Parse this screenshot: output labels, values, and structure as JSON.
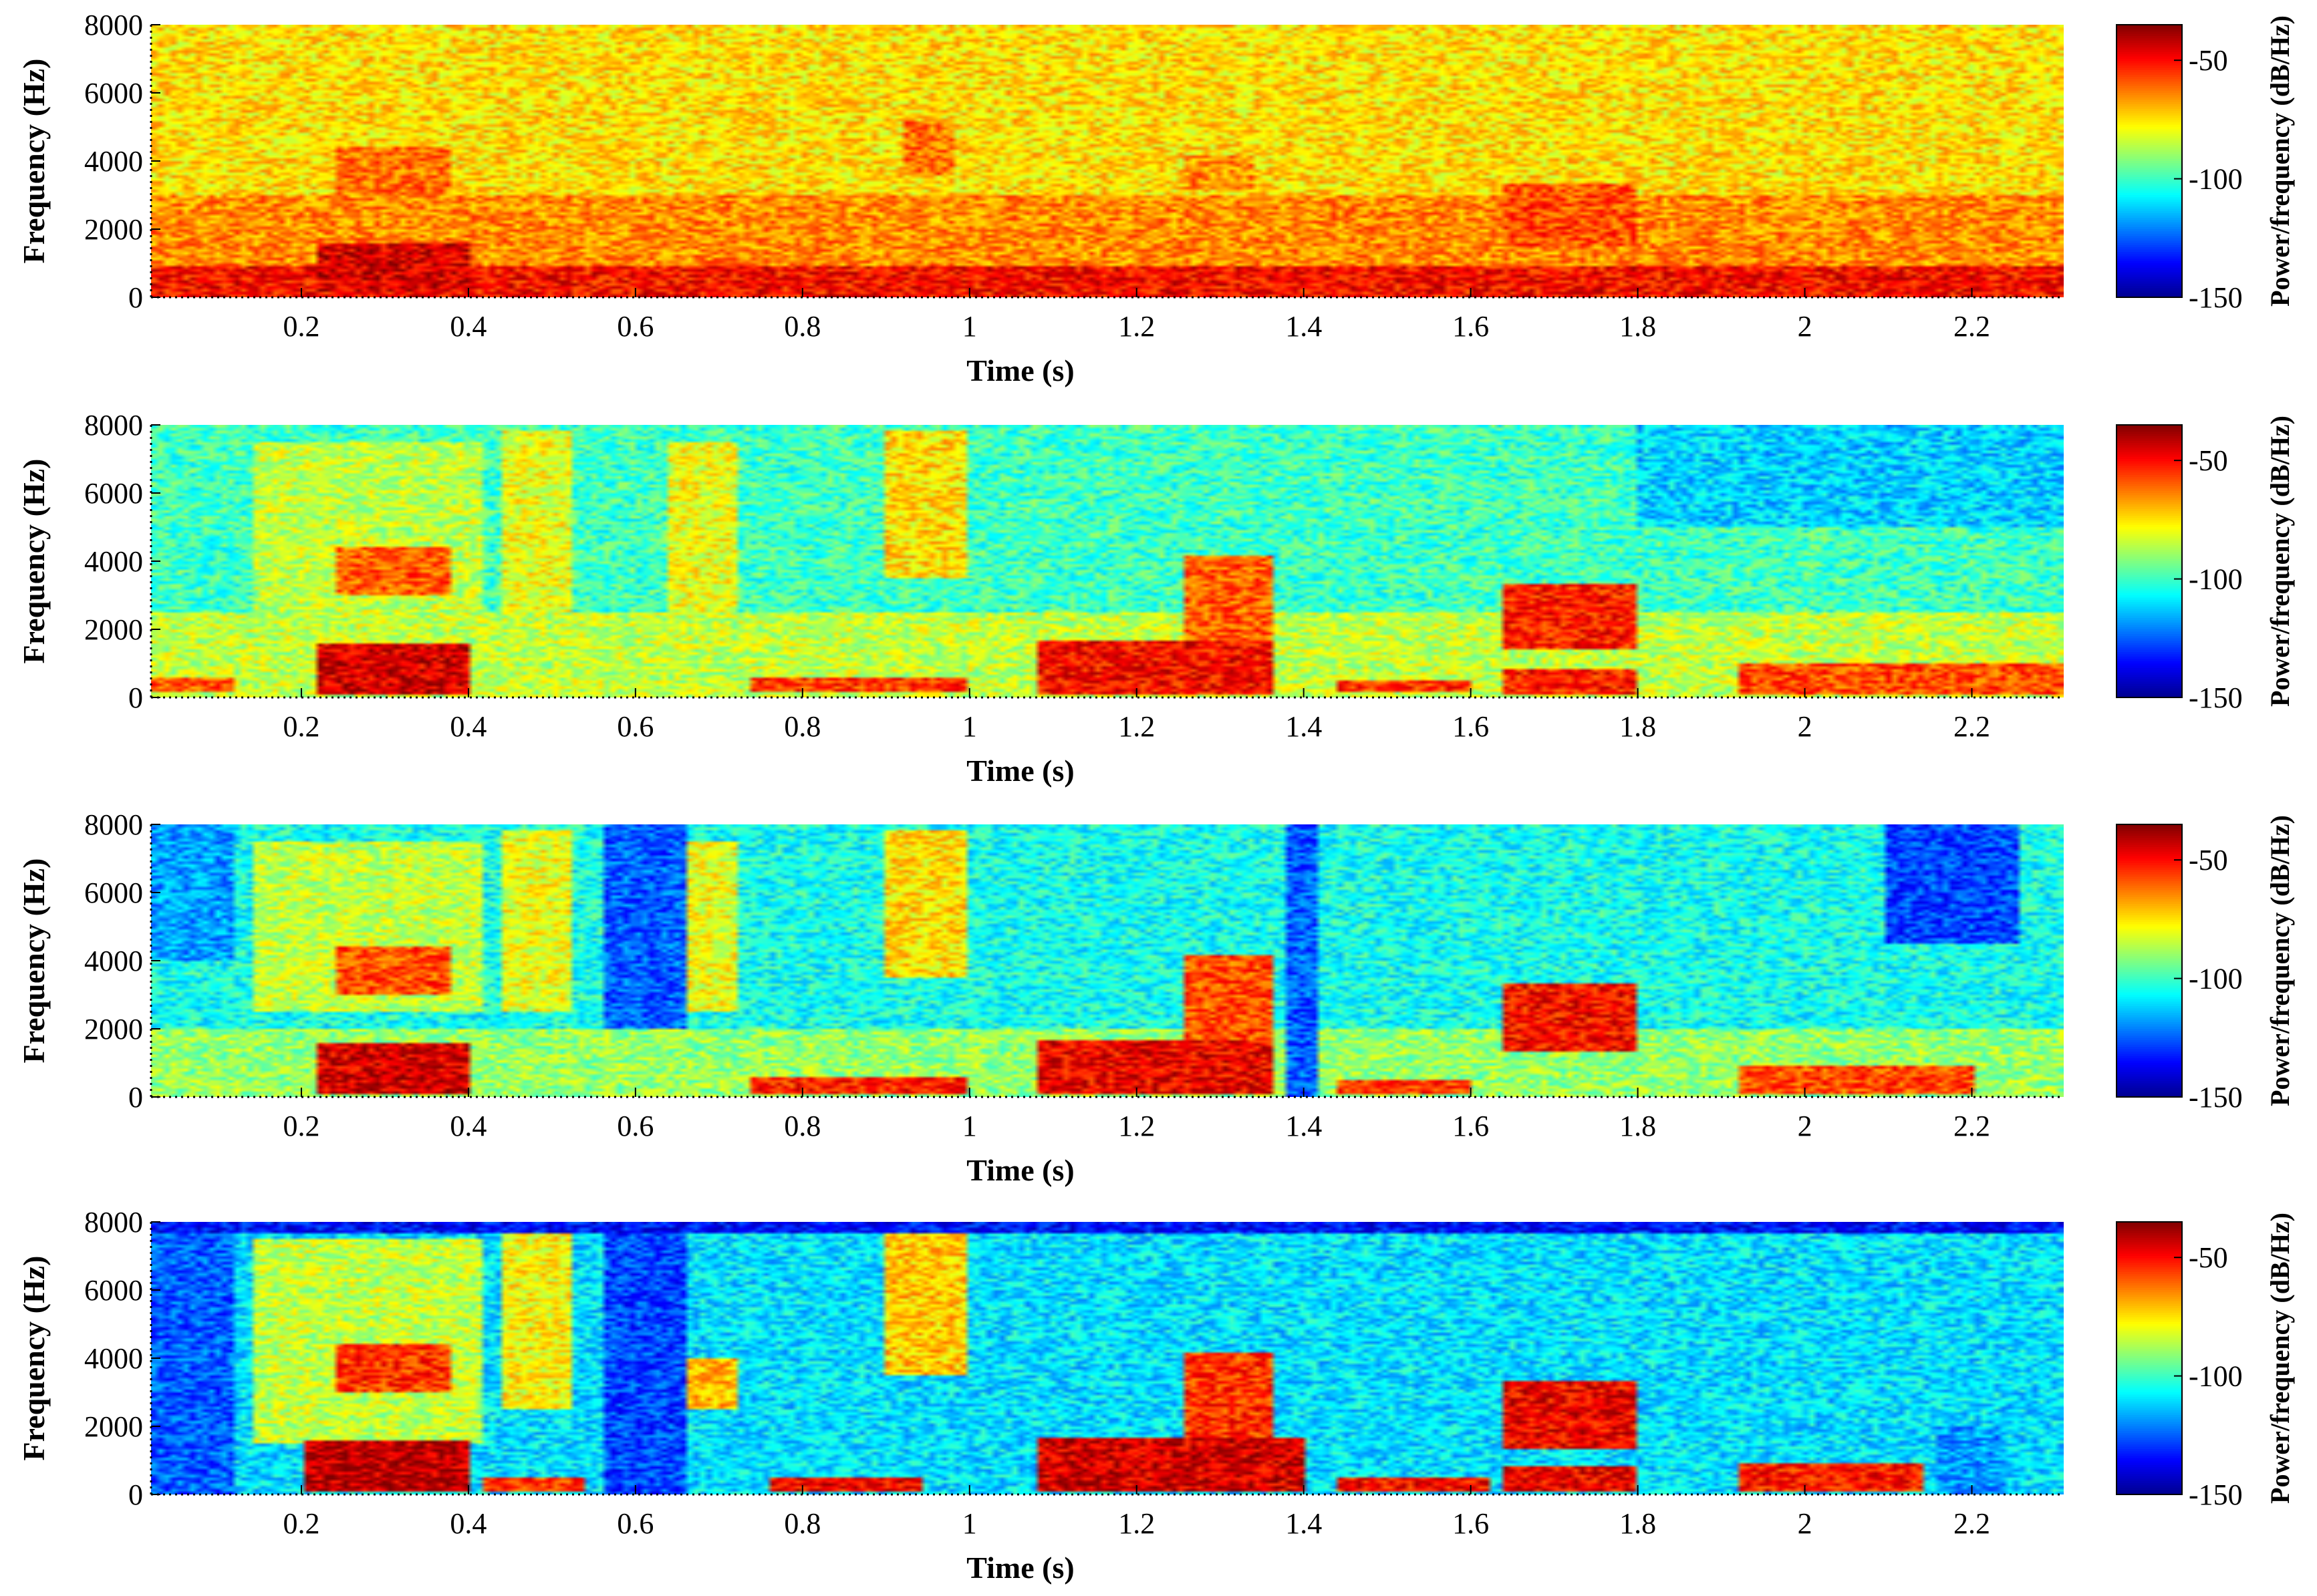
{
  "colormap": [
    "#00008f",
    "#0000ff",
    "#0080ff",
    "#00ffff",
    "#80ff80",
    "#ffff00",
    "#ff8000",
    "#ff0000",
    "#800000"
  ],
  "chart_data": [
    {
      "type": "heatmap",
      "title": "",
      "xlabel": "Time (s)",
      "ylabel": "Frequency (Hz)",
      "xlim": [
        0.02,
        2.31
      ],
      "ylim": [
        0,
        8000
      ],
      "xticks": [
        0.2,
        0.4,
        0.6,
        0.8,
        1,
        1.2,
        1.4,
        1.6,
        1.8,
        2,
        2.2
      ],
      "yticks": [
        0,
        2000,
        4000,
        6000,
        8000
      ],
      "colorbar": {
        "label": "Power/frequency (dB/Hz)",
        "range": [
          -150,
          -35
        ],
        "ticks": [
          -50,
          -100,
          -150
        ]
      },
      "background_db": -75,
      "features": [
        {
          "t": [
            0.02,
            2.31
          ],
          "f": [
            0,
            900
          ],
          "db": -50
        },
        {
          "t": [
            0.02,
            2.31
          ],
          "f": [
            900,
            3000
          ],
          "db": -65
        },
        {
          "t": [
            0.22,
            0.4
          ],
          "f": [
            200,
            1600
          ],
          "db": -45
        },
        {
          "t": [
            0.24,
            0.38
          ],
          "f": [
            3000,
            4400
          ],
          "db": -62
        },
        {
          "t": [
            1.64,
            1.8
          ],
          "f": [
            1500,
            3300
          ],
          "db": -58
        },
        {
          "t": [
            0.92,
            0.98
          ],
          "f": [
            3600,
            5200
          ],
          "db": -62
        },
        {
          "t": [
            1.26,
            1.34
          ],
          "f": [
            3200,
            4200
          ],
          "db": -65
        }
      ]
    },
    {
      "type": "heatmap",
      "title": "",
      "xlabel": "Time (s)",
      "ylabel": "Frequency (Hz)",
      "xlim": [
        0.02,
        2.31
      ],
      "ylim": [
        0,
        8000
      ],
      "xticks": [
        0.2,
        0.4,
        0.6,
        0.8,
        1,
        1.2,
        1.4,
        1.6,
        1.8,
        2,
        2.2
      ],
      "yticks": [
        0,
        2000,
        4000,
        6000,
        8000
      ],
      "colorbar": {
        "label": "Power/frequency (dB/Hz)",
        "range": [
          -150,
          -35
        ],
        "ticks": [
          -50,
          -100,
          -150
        ]
      },
      "background_db": -100,
      "features": [
        {
          "t": [
            0.02,
            2.31
          ],
          "f": [
            0,
            2500
          ],
          "db": -85
        },
        {
          "t": [
            0.02,
            0.12
          ],
          "f": [
            200,
            600
          ],
          "db": -60
        },
        {
          "t": [
            0.14,
            0.42
          ],
          "f": [
            2500,
            7500
          ],
          "db": -85
        },
        {
          "t": [
            0.22,
            0.4
          ],
          "f": [
            100,
            1600
          ],
          "db": -45
        },
        {
          "t": [
            0.24,
            0.38
          ],
          "f": [
            3000,
            4400
          ],
          "db": -60
        },
        {
          "t": [
            0.44,
            0.52
          ],
          "f": [
            2500,
            7800
          ],
          "db": -80
        },
        {
          "t": [
            0.64,
            0.72
          ],
          "f": [
            2500,
            7500
          ],
          "db": -80
        },
        {
          "t": [
            0.9,
            1.0
          ],
          "f": [
            3500,
            7800
          ],
          "db": -75
        },
        {
          "t": [
            0.74,
            1.0
          ],
          "f": [
            200,
            600
          ],
          "db": -55
        },
        {
          "t": [
            1.08,
            1.36
          ],
          "f": [
            100,
            1700
          ],
          "db": -50
        },
        {
          "t": [
            1.26,
            1.36
          ],
          "f": [
            1700,
            4200
          ],
          "db": -60
        },
        {
          "t": [
            1.44,
            1.6
          ],
          "f": [
            200,
            500
          ],
          "db": -55
        },
        {
          "t": [
            1.64,
            1.8
          ],
          "f": [
            1400,
            3300
          ],
          "db": -52
        },
        {
          "t": [
            1.64,
            1.8
          ],
          "f": [
            100,
            800
          ],
          "db": -52
        },
        {
          "t": [
            1.92,
            2.31
          ],
          "f": [
            100,
            1000
          ],
          "db": -58
        },
        {
          "t": [
            1.8,
            2.31
          ],
          "f": [
            5000,
            8000
          ],
          "db": -112
        }
      ]
    },
    {
      "type": "heatmap",
      "title": "",
      "xlabel": "Time (s)",
      "ylabel": "Frequency (Hz)",
      "xlim": [
        0.02,
        2.31
      ],
      "ylim": [
        0,
        8000
      ],
      "xticks": [
        0.2,
        0.4,
        0.6,
        0.8,
        1,
        1.2,
        1.4,
        1.6,
        1.8,
        2,
        2.2
      ],
      "yticks": [
        0,
        2000,
        4000,
        6000,
        8000
      ],
      "colorbar": {
        "label": "Power/frequency (dB/Hz)",
        "range": [
          -150,
          -35
        ],
        "ticks": [
          -50,
          -100,
          -150
        ]
      },
      "background_db": -105,
      "features": [
        {
          "t": [
            0.02,
            2.31
          ],
          "f": [
            0,
            2000
          ],
          "db": -90
        },
        {
          "t": [
            0.02,
            0.12
          ],
          "f": [
            4000,
            8000
          ],
          "db": -118
        },
        {
          "t": [
            0.56,
            0.66
          ],
          "f": [
            2000,
            8000
          ],
          "db": -125
        },
        {
          "t": [
            0.14,
            0.42
          ],
          "f": [
            2500,
            7500
          ],
          "db": -85
        },
        {
          "t": [
            0.22,
            0.4
          ],
          "f": [
            100,
            1600
          ],
          "db": -45
        },
        {
          "t": [
            0.24,
            0.38
          ],
          "f": [
            3000,
            4400
          ],
          "db": -58
        },
        {
          "t": [
            0.44,
            0.52
          ],
          "f": [
            2500,
            7800
          ],
          "db": -80
        },
        {
          "t": [
            0.66,
            0.72
          ],
          "f": [
            2500,
            7500
          ],
          "db": -80
        },
        {
          "t": [
            0.9,
            1.0
          ],
          "f": [
            3500,
            7800
          ],
          "db": -75
        },
        {
          "t": [
            0.74,
            1.0
          ],
          "f": [
            100,
            600
          ],
          "db": -52
        },
        {
          "t": [
            1.08,
            1.36
          ],
          "f": [
            100,
            1700
          ],
          "db": -48
        },
        {
          "t": [
            1.26,
            1.36
          ],
          "f": [
            1700,
            4200
          ],
          "db": -58
        },
        {
          "t": [
            1.38,
            1.42
          ],
          "f": [
            0,
            8000
          ],
          "db": -125
        },
        {
          "t": [
            1.44,
            1.6
          ],
          "f": [
            100,
            500
          ],
          "db": -55
        },
        {
          "t": [
            1.64,
            1.8
          ],
          "f": [
            1300,
            3300
          ],
          "db": -50
        },
        {
          "t": [
            1.92,
            2.2
          ],
          "f": [
            100,
            900
          ],
          "db": -58
        },
        {
          "t": [
            2.1,
            2.26
          ],
          "f": [
            4500,
            8000
          ],
          "db": -128
        }
      ]
    },
    {
      "type": "heatmap",
      "title": "",
      "xlabel": "Time (s)",
      "ylabel": "Frequency (Hz)",
      "xlim": [
        0.02,
        2.31
      ],
      "ylim": [
        0,
        8000
      ],
      "xticks": [
        0.2,
        0.4,
        0.6,
        0.8,
        1,
        1.2,
        1.4,
        1.6,
        1.8,
        2,
        2.2
      ],
      "yticks": [
        0,
        2000,
        4000,
        6000,
        8000
      ],
      "colorbar": {
        "label": "Power/frequency (dB/Hz)",
        "range": [
          -150,
          -35
        ],
        "ticks": [
          -50,
          -100,
          -150
        ]
      },
      "background_db": -110,
      "features": [
        {
          "t": [
            0.02,
            2.31
          ],
          "f": [
            7700,
            8000
          ],
          "db": -135
        },
        {
          "t": [
            0.02,
            0.12
          ],
          "f": [
            0,
            8000
          ],
          "db": -125
        },
        {
          "t": [
            0.56,
            0.66
          ],
          "f": [
            0,
            8000
          ],
          "db": -128
        },
        {
          "t": [
            0.14,
            0.42
          ],
          "f": [
            1500,
            7500
          ],
          "db": -85
        },
        {
          "t": [
            0.2,
            0.4
          ],
          "f": [
            100,
            1600
          ],
          "db": -42
        },
        {
          "t": [
            0.24,
            0.38
          ],
          "f": [
            3000,
            4400
          ],
          "db": -55
        },
        {
          "t": [
            0.42,
            0.54
          ],
          "f": [
            100,
            500
          ],
          "db": -55
        },
        {
          "t": [
            0.44,
            0.52
          ],
          "f": [
            2500,
            7800
          ],
          "db": -78
        },
        {
          "t": [
            0.66,
            0.72
          ],
          "f": [
            2500,
            4000
          ],
          "db": -70
        },
        {
          "t": [
            0.76,
            0.94
          ],
          "f": [
            100,
            500
          ],
          "db": -48
        },
        {
          "t": [
            0.9,
            1.0
          ],
          "f": [
            3500,
            7800
          ],
          "db": -72
        },
        {
          "t": [
            1.08,
            1.4
          ],
          "f": [
            100,
            1700
          ],
          "db": -45
        },
        {
          "t": [
            1.26,
            1.36
          ],
          "f": [
            1700,
            4200
          ],
          "db": -55
        },
        {
          "t": [
            1.44,
            1.62
          ],
          "f": [
            100,
            500
          ],
          "db": -50
        },
        {
          "t": [
            1.64,
            1.8
          ],
          "f": [
            1300,
            3300
          ],
          "db": -48
        },
        {
          "t": [
            1.64,
            1.8
          ],
          "f": [
            100,
            800
          ],
          "db": -48
        },
        {
          "t": [
            1.92,
            2.14
          ],
          "f": [
            100,
            900
          ],
          "db": -52
        },
        {
          "t": [
            2.16,
            2.24
          ],
          "f": [
            0,
            2000
          ],
          "db": -118
        }
      ]
    }
  ]
}
